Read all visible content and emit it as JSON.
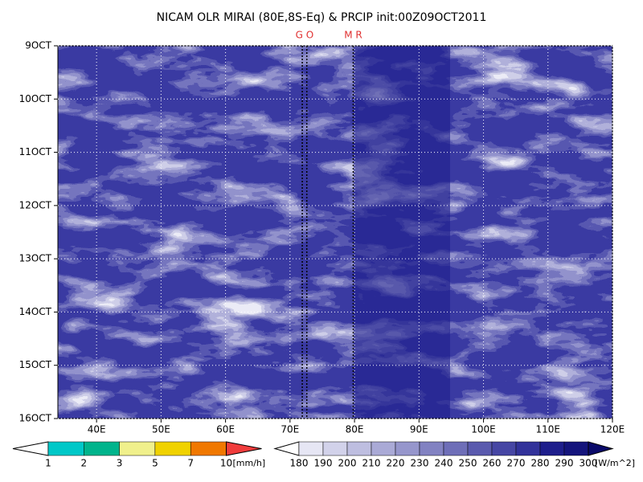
{
  "chart_data": {
    "type": "hovmoller",
    "title": "NICAM OLR MIRAI (80E,8S-Eq) & PRCIP init:00Z09OCT2011",
    "xlim": [
      34,
      120
    ],
    "xticks": [
      {
        "value": 40,
        "label": "40E"
      },
      {
        "value": 50,
        "label": "50E"
      },
      {
        "value": 60,
        "label": "60E"
      },
      {
        "value": 70,
        "label": "70E"
      },
      {
        "value": 80,
        "label": "80E"
      },
      {
        "value": 90,
        "label": "90E"
      },
      {
        "value": 100,
        "label": "100E"
      },
      {
        "value": 110,
        "label": "110E"
      },
      {
        "value": 120,
        "label": "120E"
      }
    ],
    "ylim": [
      9,
      16
    ],
    "invert_y": true,
    "yticks": [
      {
        "value": 9,
        "label": "9OCT"
      },
      {
        "value": 10,
        "label": "10OCT"
      },
      {
        "value": 11,
        "label": "11OCT"
      },
      {
        "value": 12,
        "label": "12OCT"
      },
      {
        "value": 13,
        "label": "13OCT"
      },
      {
        "value": 14,
        "label": "14OCT"
      },
      {
        "value": 15,
        "label": "15OCT"
      },
      {
        "value": 16,
        "label": "16OCT"
      }
    ],
    "grid": true,
    "markers": [
      {
        "label": "G O",
        "x": [
          71.9,
          72.6
        ]
      },
      {
        "label": "M R",
        "x": [
          79.8
        ]
      }
    ],
    "colorbars": [
      {
        "unit": "[mm/h]",
        "levels": [
          1,
          2,
          3,
          5,
          7,
          10
        ],
        "colors": [
          "#ffffff",
          "#00c8c8",
          "#00b48c",
          "#f0f08c",
          "#f0d200",
          "#f07800",
          "#f03c3c"
        ]
      },
      {
        "unit": "[W/m^2]",
        "levels": [
          180,
          190,
          200,
          210,
          220,
          230,
          240,
          250,
          260,
          270,
          280,
          290,
          300
        ],
        "colors": [
          "#ffffff",
          "#e6e6f4",
          "#d2d2ea",
          "#bebee0",
          "#aaaad6",
          "#9696cc",
          "#8282c2",
          "#6e6eb8",
          "#5a5aae",
          "#4646a4",
          "#32329a",
          "#1e1e8c",
          "#14147c",
          "#0a0a6a"
        ]
      }
    ]
  }
}
